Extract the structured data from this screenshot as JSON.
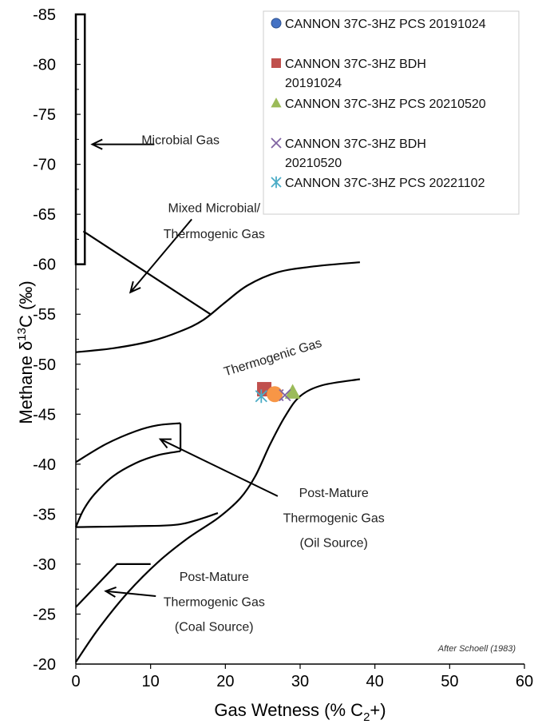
{
  "chart_data": {
    "type": "scatter",
    "xlabel": "Gas Wetness (% C₂+)",
    "ylabel": "Methane δ¹³C (‰)",
    "xlim": [
      0,
      60
    ],
    "ylim": [
      -20,
      -85
    ],
    "x_ticks": [
      "0",
      "10",
      "20",
      "30",
      "40",
      "50",
      "60"
    ],
    "y_ticks": [
      "-20",
      "-25",
      "-30",
      "-35",
      "-40",
      "-45",
      "-50",
      "-55",
      "-60",
      "-65",
      "-70",
      "-75",
      "-80",
      "-85"
    ],
    "grid": false,
    "legend_position": "top-right",
    "series": [
      {
        "name": "CANNON 37C-3HZ PCS 20191024",
        "marker": "circle",
        "color": "#4472C4",
        "x": 26.6,
        "y": -47.0
      },
      {
        "name": "CANNON 37C-3HZ BDH 20191024",
        "marker": "square",
        "color": "#C0504D",
        "x": 25.2,
        "y": -47.5
      },
      {
        "name": "CANNON 37C-3HZ PCS 20210520",
        "marker": "triangle",
        "color": "#9BBB59",
        "x": 29.0,
        "y": -47.2
      },
      {
        "name": "CANNON 37C-3HZ BDH 20210520",
        "marker": "x",
        "color": "#8064A2",
        "x": 27.0,
        "y": -46.9
      },
      {
        "name": "CANNON 37C-3HZ PCS 20221102",
        "marker": "star",
        "color": "#4BACC6",
        "x": 24.8,
        "y": -46.8
      }
    ],
    "extra_marker": {
      "marker": "circle",
      "color": "#F79646",
      "x": 26.6,
      "y": -47.0
    },
    "zones": {
      "microbial_box": {
        "x": [
          0,
          1.2
        ],
        "y": [
          -60,
          -85
        ]
      },
      "mixed_line": [
        [
          1,
          -63.3
        ],
        [
          18,
          -55
        ]
      ],
      "upper_curve": [
        [
          0,
          -51.2
        ],
        [
          5,
          -51.6
        ],
        [
          10,
          -52.3
        ],
        [
          14,
          -53.3
        ],
        [
          17,
          -54.4
        ],
        [
          20,
          -56.2
        ],
        [
          23,
          -57.9
        ],
        [
          27,
          -59.2
        ],
        [
          32,
          -59.8
        ],
        [
          38,
          -60.2
        ]
      ],
      "lower_curve": [
        [
          0,
          -20.2
        ],
        [
          3,
          -23.5
        ],
        [
          7,
          -27.2
        ],
        [
          11,
          -30.2
        ],
        [
          15,
          -32.6
        ],
        [
          19,
          -34.6
        ],
        [
          22,
          -36.6
        ],
        [
          24,
          -38.8
        ],
        [
          26,
          -42.0
        ],
        [
          28,
          -44.8
        ],
        [
          30,
          -46.8
        ],
        [
          33,
          -47.9
        ],
        [
          38,
          -48.5
        ]
      ],
      "oil_box_curve": [
        [
          0,
          -33.7
        ],
        [
          1,
          -35.4
        ],
        [
          2.5,
          -37.0
        ],
        [
          5,
          -38.8
        ],
        [
          8,
          -40.1
        ],
        [
          11,
          -40.9
        ],
        [
          14,
          -41.3
        ]
      ],
      "oil_box_left": [
        [
          0,
          -40.2
        ],
        [
          4,
          -42.0
        ],
        [
          8,
          -43.3
        ],
        [
          11,
          -43.9
        ],
        [
          14,
          -44.1
        ]
      ],
      "oil_box_right": [
        [
          14,
          -44.1
        ],
        [
          14,
          -41.3
        ]
      ],
      "oil_box_bottom": [
        [
          0,
          -33.7
        ],
        [
          8,
          -33.8
        ],
        [
          14,
          -34.0
        ],
        [
          19,
          -35.1
        ]
      ],
      "coal_box": [
        [
          0,
          -25.7
        ],
        [
          5.5,
          -30.0
        ],
        [
          10,
          -30.0
        ]
      ]
    },
    "annotations": [
      {
        "text": "Microbial Gas",
        "x": 14,
        "y": -72
      },
      {
        "text": "Mixed Microbial/",
        "x": 18.5,
        "y": -65.2
      },
      {
        "text": "Thermogenic Gas",
        "x": 18.5,
        "y": -62.6
      },
      {
        "text": "Thermogenic Gas",
        "x": 26.5,
        "y": -50.3,
        "rotate": -17
      },
      {
        "text": "Post-Mature",
        "x": 34.5,
        "y": -36.7
      },
      {
        "text": "Thermogenic Gas",
        "x": 34.5,
        "y": -34.2
      },
      {
        "text": "(Oil Source)",
        "x": 34.5,
        "y": -31.7
      },
      {
        "text": "Post-Mature",
        "x": 18.5,
        "y": -28.3
      },
      {
        "text": "Thermogenic Gas",
        "x": 18.5,
        "y": -25.8
      },
      {
        "text": "(Coal Source)",
        "x": 18.5,
        "y": -23.3
      }
    ],
    "arrows": [
      {
        "from": [
          10.5,
          -72
        ],
        "to": [
          2.2,
          -72
        ]
      },
      {
        "from": [
          15.5,
          -64.5
        ],
        "to": [
          7.3,
          -57.2
        ]
      },
      {
        "from": [
          27,
          -36.8
        ],
        "to": [
          11.3,
          -42.5
        ]
      },
      {
        "from": [
          10.7,
          -26.8
        ],
        "to": [
          4.0,
          -27.3
        ]
      }
    ],
    "credit": "After Schoell (1983)"
  }
}
